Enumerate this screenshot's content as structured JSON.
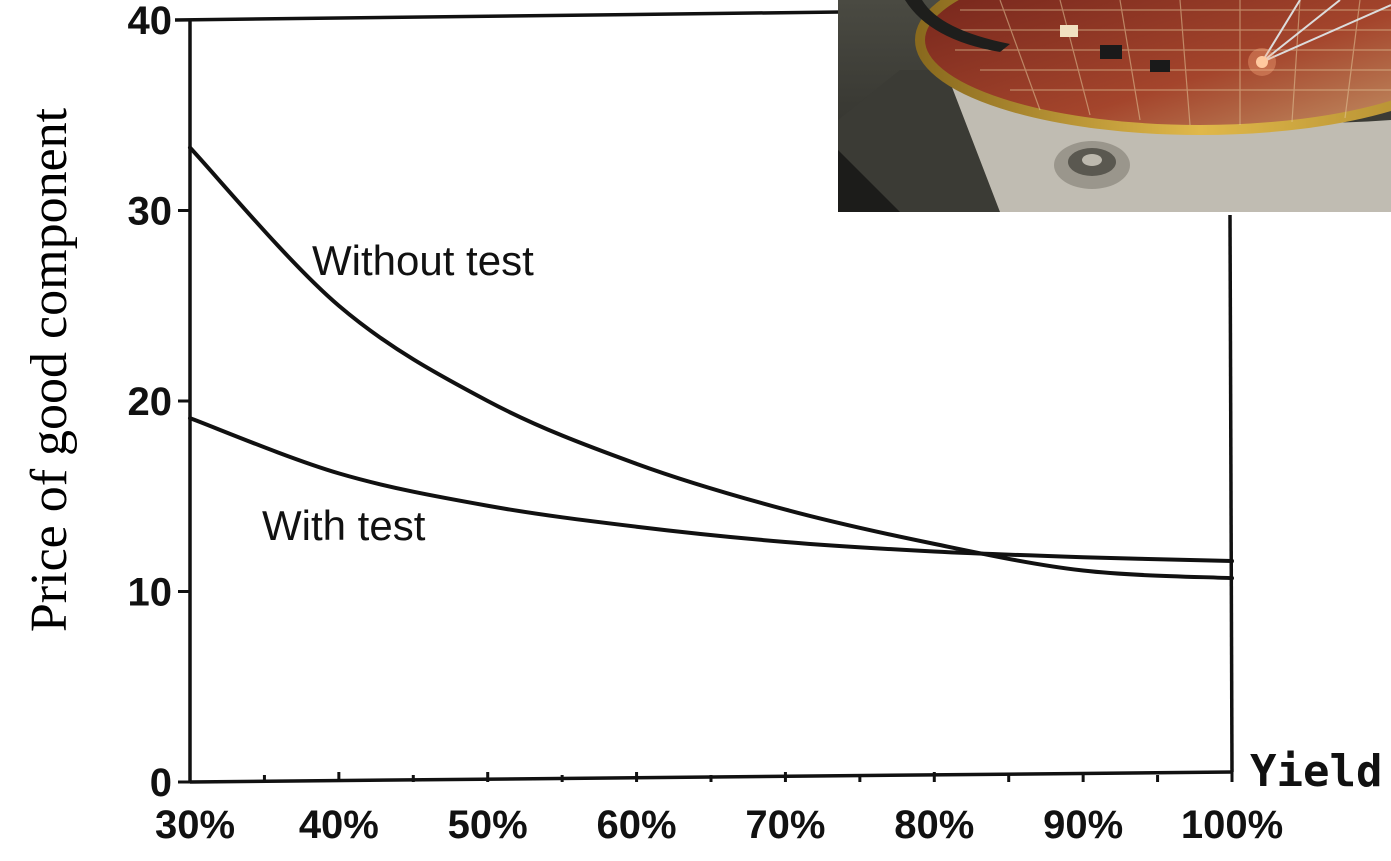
{
  "chart_data": {
    "type": "line",
    "ylabel": "Price of good component",
    "xlabel": "Yield",
    "x": [
      30,
      40,
      50,
      60,
      70,
      80,
      90,
      100
    ],
    "x_tick_labels": [
      "30%",
      "40%",
      "50%",
      "60%",
      "70%",
      "80%",
      "90%",
      "100%"
    ],
    "y_ticks": [
      0,
      10,
      20,
      30,
      40
    ],
    "y_tick_labels": [
      "0",
      "10",
      "20",
      "30",
      "40"
    ],
    "xlim": [
      30,
      100
    ],
    "ylim": [
      0,
      40
    ],
    "series": [
      {
        "name": "Without test",
        "values": [
          33.3,
          25.0,
          20.0,
          16.7,
          14.3,
          12.5,
          11.1,
          10.7
        ]
      },
      {
        "name": "With test",
        "values": [
          19.1,
          16.2,
          14.5,
          13.4,
          12.6,
          12.1,
          11.8,
          11.6
        ]
      }
    ],
    "grid": false,
    "legend": "inline labels"
  },
  "photo": {
    "icon": "wafer-probe-photo",
    "colors": {
      "dark": "#3a3a34",
      "gold": "#c9a23a",
      "red": "#8a2a1e",
      "metal": "#cfcbc0"
    }
  }
}
